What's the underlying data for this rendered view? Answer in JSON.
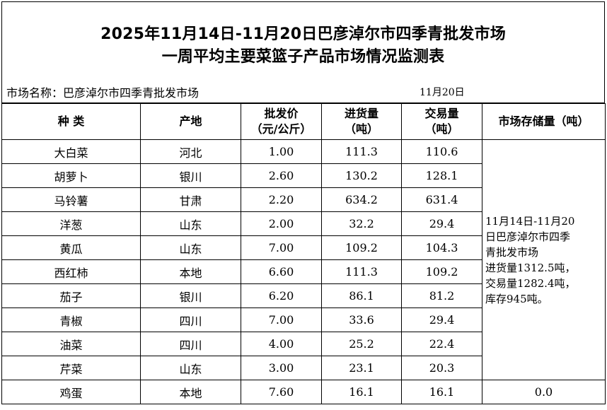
{
  "title": {
    "line1": "2025年11月14日-11月20日巴彦淖尔市四季青批发市场",
    "line2": "一周平均主要菜篮子产品市场情况监测表"
  },
  "market": {
    "name_label": "市场名称：巴彦淖尔市四季青批发市场",
    "date": "11月20日"
  },
  "headers": {
    "kind": "种  类",
    "origin": "产地",
    "price_line1": "批发价",
    "price_line2": "（元/公斤）",
    "incoming_line1": "进货量",
    "incoming_line2": "（吨）",
    "traded_line1": "交易量",
    "traded_line2": "（吨）",
    "storage": "市场存储量（吨）"
  },
  "rows": [
    {
      "kind": "大白菜",
      "origin": "河北",
      "price": "1.00",
      "incoming": "111.3",
      "traded": "110.6"
    },
    {
      "kind": "胡萝卜",
      "origin": "银川",
      "price": "2.60",
      "incoming": "130.2",
      "traded": "128.1"
    },
    {
      "kind": "马铃薯",
      "origin": "甘肃",
      "price": "2.20",
      "incoming": "634.2",
      "traded": "631.4"
    },
    {
      "kind": "洋葱",
      "origin": "山东",
      "price": "2.00",
      "incoming": "32.2",
      "traded": "29.4"
    },
    {
      "kind": "黄瓜",
      "origin": "山东",
      "price": "7.00",
      "incoming": "109.2",
      "traded": "104.3"
    },
    {
      "kind": "西红柿",
      "origin": "本地",
      "price": "6.60",
      "incoming": "111.3",
      "traded": "109.2"
    },
    {
      "kind": "茄子",
      "origin": "银川",
      "price": "6.20",
      "incoming": "86.1",
      "traded": "81.2"
    },
    {
      "kind": "青椒",
      "origin": "四川",
      "price": "7.00",
      "incoming": "33.6",
      "traded": "29.4"
    },
    {
      "kind": "油菜",
      "origin": "四川",
      "price": "4.00",
      "incoming": "25.2",
      "traded": "22.4"
    },
    {
      "kind": "芹菜",
      "origin": "山东",
      "price": "3.00",
      "incoming": "23.1",
      "traded": "20.3"
    },
    {
      "kind": "鸡蛋",
      "origin": "本地",
      "price": "7.60",
      "incoming": "16.1",
      "traded": "16.1",
      "storage": "0.0"
    }
  ],
  "note": {
    "line1": "11月14日-11月20",
    "line2": "日巴彦淖尔市四季",
    "line3": "青批发市场",
    "line4": "进货量1312.5吨，",
    "line5": "交易量1282.4吨，",
    "line6": "库存945吨。"
  }
}
